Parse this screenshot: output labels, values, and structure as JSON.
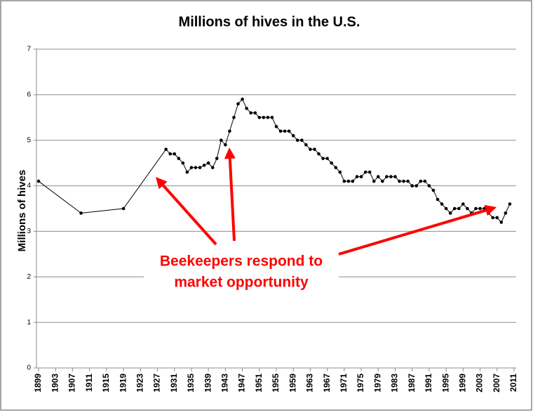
{
  "chart_data": {
    "type": "line",
    "title": "Millions of hives in the U.S.",
    "y_label": "Millions of hives",
    "annotation": [
      "Beekeepers respond to",
      "market opportunity"
    ],
    "color": "#000000",
    "annotation_color": "#ff0000",
    "grid": true,
    "x": [
      1899,
      1909,
      1919,
      1929,
      1930,
      1931,
      1932,
      1933,
      1934,
      1935,
      1936,
      1937,
      1938,
      1939,
      1940,
      1941,
      1942,
      1943,
      1944,
      1945,
      1946,
      1947,
      1948,
      1949,
      1950,
      1951,
      1952,
      1953,
      1954,
      1955,
      1956,
      1957,
      1958,
      1959,
      1960,
      1961,
      1962,
      1963,
      1964,
      1965,
      1966,
      1967,
      1968,
      1969,
      1970,
      1971,
      1972,
      1973,
      1974,
      1975,
      1976,
      1977,
      1978,
      1979,
      1980,
      1981,
      1982,
      1983,
      1984,
      1985,
      1986,
      1987,
      1988,
      1989,
      1990,
      1991,
      1992,
      1993,
      1994,
      1995,
      1996,
      1997,
      1998,
      1999,
      2000,
      2001,
      2002,
      2003,
      2004,
      2005,
      2006,
      2007,
      2008,
      2009,
      2010
    ],
    "values": [
      4.1,
      3.4,
      3.5,
      4.8,
      4.7,
      4.7,
      4.6,
      4.5,
      4.3,
      4.4,
      4.4,
      4.4,
      4.45,
      4.5,
      4.4,
      4.6,
      5.0,
      4.9,
      5.2,
      5.5,
      5.8,
      5.9,
      5.7,
      5.6,
      5.6,
      5.5,
      5.5,
      5.5,
      5.5,
      5.3,
      5.2,
      5.2,
      5.2,
      5.1,
      5.0,
      5.0,
      4.9,
      4.8,
      4.8,
      4.7,
      4.6,
      4.6,
      4.5,
      4.4,
      4.3,
      4.1,
      4.1,
      4.1,
      4.2,
      4.2,
      4.3,
      4.3,
      4.1,
      4.2,
      4.1,
      4.2,
      4.2,
      4.2,
      4.1,
      4.1,
      4.1,
      4.0,
      4.0,
      4.1,
      4.1,
      4.0,
      3.9,
      3.7,
      3.6,
      3.5,
      3.4,
      3.5,
      3.5,
      3.6,
      3.5,
      3.4,
      3.5,
      3.5,
      3.5,
      3.4,
      3.3,
      3.3,
      3.2,
      3.4,
      3.6
    ],
    "xlim": [
      1898.5,
      2011.5
    ],
    "xticks": [
      1899,
      1903,
      1907,
      1911,
      1915,
      1919,
      1923,
      1927,
      1931,
      1935,
      1939,
      1943,
      1947,
      1951,
      1955,
      1959,
      1963,
      1967,
      1971,
      1975,
      1979,
      1983,
      1987,
      1991,
      1995,
      1999,
      2003,
      2007,
      2011
    ],
    "ylim": [
      0,
      7
    ],
    "yticks": [
      0,
      1,
      2,
      3,
      4,
      5,
      6,
      7
    ]
  }
}
